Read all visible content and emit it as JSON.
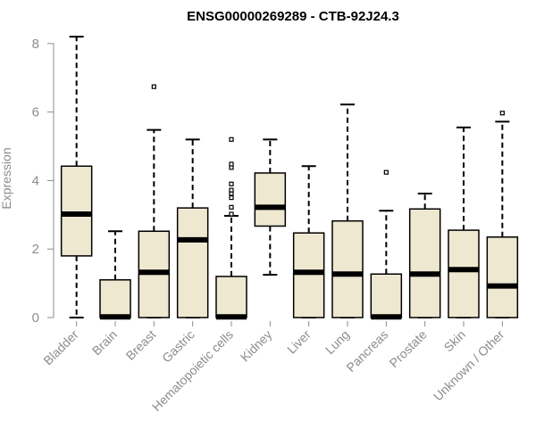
{
  "chart_data": {
    "type": "boxplot",
    "title": "ENSG00000269289 - CTB-92J24.3",
    "xlabel": "",
    "ylabel": "Expression",
    "ylim": [
      0,
      8.2
    ],
    "yticks": [
      0,
      2,
      4,
      6,
      8
    ],
    "grid": false,
    "box_fill": "#efe8d0",
    "box_stroke": "#000000",
    "categories": [
      "Bladder",
      "Brain",
      "Breast",
      "Gastric",
      "Hematopoietic cells",
      "Kidney",
      "Liver",
      "Lung",
      "Pancreas",
      "Prostate",
      "Skin",
      "Unknown / Other"
    ],
    "boxes": [
      {
        "name": "Bladder",
        "min": 0,
        "q1": 1.8,
        "median": 3.02,
        "q3": 4.42,
        "max": 8.2,
        "outliers": []
      },
      {
        "name": "Brain",
        "min": 0,
        "q1": 0,
        "median": 0.02,
        "q3": 1.1,
        "max": 2.52,
        "outliers": []
      },
      {
        "name": "Breast",
        "min": 0,
        "q1": 0,
        "median": 1.32,
        "q3": 2.52,
        "max": 5.48,
        "outliers": [
          6.74
        ]
      },
      {
        "name": "Gastric",
        "min": 0,
        "q1": 0,
        "median": 2.27,
        "q3": 3.2,
        "max": 5.2,
        "outliers": []
      },
      {
        "name": "Hematopoietic cells",
        "min": 0,
        "q1": 0,
        "median": 0.02,
        "q3": 1.2,
        "max": 2.97,
        "outliers": [
          3.02,
          3.22,
          3.5,
          3.62,
          3.72,
          3.9,
          4.38,
          4.48,
          5.2
        ]
      },
      {
        "name": "Kidney",
        "min": 1.25,
        "q1": 2.67,
        "median": 3.22,
        "q3": 4.22,
        "max": 5.2,
        "outliers": []
      },
      {
        "name": "Liver",
        "min": 0,
        "q1": 0,
        "median": 1.32,
        "q3": 2.47,
        "max": 4.42,
        "outliers": []
      },
      {
        "name": "Lung",
        "min": 0,
        "q1": 0,
        "median": 1.27,
        "q3": 2.82,
        "max": 6.22,
        "outliers": []
      },
      {
        "name": "Pancreas",
        "min": 0,
        "q1": 0,
        "median": 0.02,
        "q3": 1.27,
        "max": 3.12,
        "outliers": [
          4.24
        ]
      },
      {
        "name": "Prostate",
        "min": 0,
        "q1": 0,
        "median": 1.27,
        "q3": 3.17,
        "max": 3.62,
        "outliers": []
      },
      {
        "name": "Skin",
        "min": 0,
        "q1": 0,
        "median": 1.4,
        "q3": 2.55,
        "max": 5.55,
        "outliers": []
      },
      {
        "name": "Unknown / Other",
        "min": 0,
        "q1": 0,
        "median": 0.92,
        "q3": 2.35,
        "max": 5.72,
        "outliers": [
          5.97
        ]
      }
    ]
  }
}
